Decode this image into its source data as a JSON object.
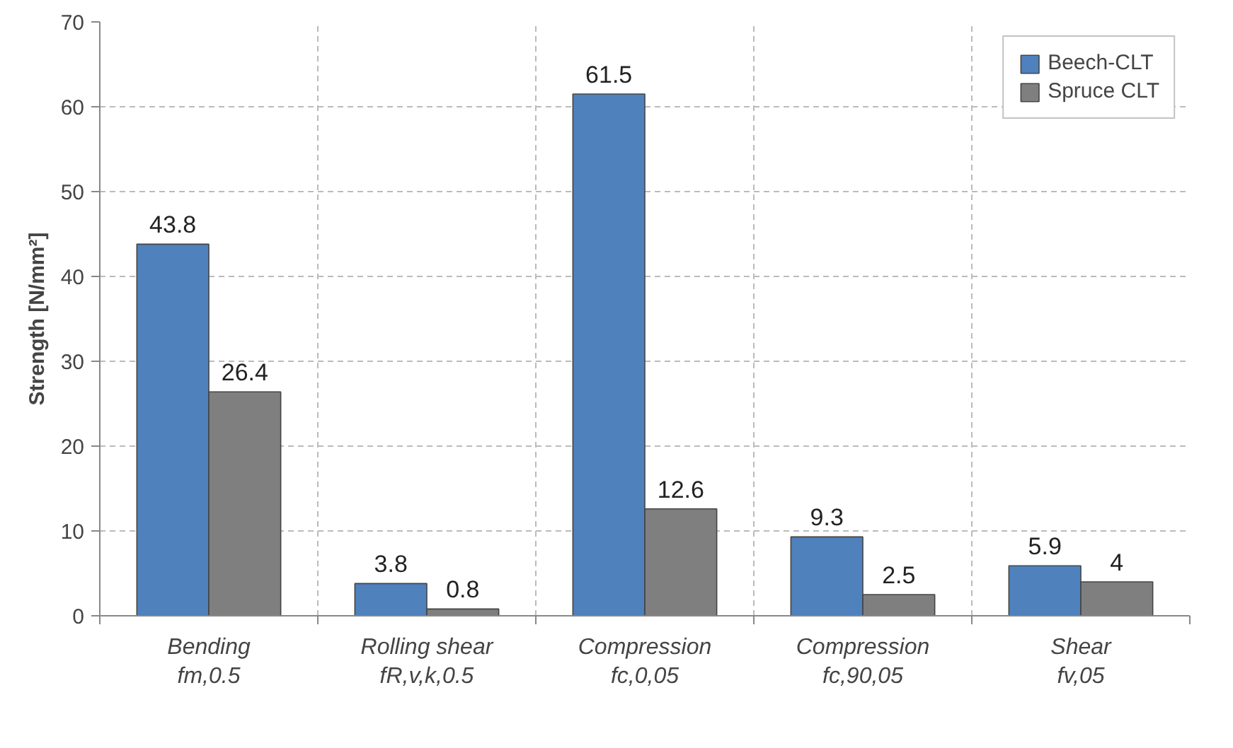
{
  "chart_data": {
    "type": "bar",
    "ylabel": "Strength [N/mm²]",
    "categories": [
      "Bending\nfm,0.5",
      "Rolling shear\nfR,v,k,0.5",
      "Compression\nfc,0,05",
      "Compression\nfc,90,05",
      "Shear\nfv,05"
    ],
    "series": [
      {
        "name": "Beech-CLT",
        "color": "#4f81bd",
        "values": [
          43.8,
          3.8,
          61.5,
          9.3,
          5.9
        ]
      },
      {
        "name": "Spruce CLT",
        "color": "#7f7f7f",
        "values": [
          26.4,
          0.8,
          12.6,
          2.5,
          4
        ]
      }
    ],
    "ylim": [
      0,
      70
    ],
    "yticks": [
      0,
      10,
      20,
      30,
      40,
      50,
      60,
      70
    ],
    "grid": true,
    "legend": "top right",
    "data_labels": true
  }
}
